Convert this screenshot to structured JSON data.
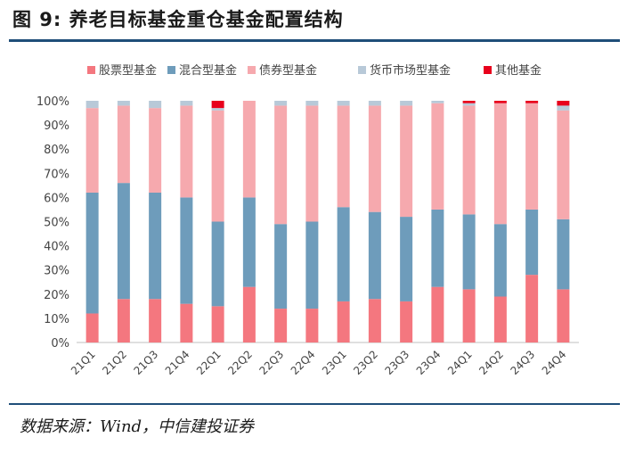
{
  "header": {
    "title": "图 9: 养老目标基金重仓基金配置结构"
  },
  "footer": {
    "source": "数据来源：Wind，中信建投证券"
  },
  "chart_data": {
    "type": "bar",
    "stacked": true,
    "categories": [
      "21Q1",
      "21Q2",
      "21Q3",
      "21Q4",
      "22Q1",
      "22Q2",
      "22Q3",
      "22Q4",
      "23Q1",
      "23Q2",
      "23Q3",
      "23Q4",
      "24Q1",
      "24Q2",
      "24Q3",
      "24Q4"
    ],
    "series": [
      {
        "name": "股票型基金",
        "color": "#f4777f",
        "values": [
          12,
          18,
          18,
          16,
          15,
          23,
          14,
          14,
          17,
          18,
          17,
          23,
          22,
          19,
          28,
          22
        ]
      },
      {
        "name": "混合型基金",
        "color": "#6e9cbb",
        "values": [
          50,
          48,
          44,
          44,
          35,
          37,
          35,
          36,
          39,
          36,
          35,
          32,
          31,
          30,
          27,
          29
        ]
      },
      {
        "name": "债券型基金",
        "color": "#f6a9ae",
        "values": [
          35,
          32,
          35,
          38,
          46,
          40,
          49,
          48,
          42,
          44,
          46,
          44,
          45,
          50,
          44,
          45
        ]
      },
      {
        "name": "货币市场型基金",
        "color": "#b8c9d8",
        "values": [
          3,
          2,
          3,
          2,
          1,
          0,
          2,
          2,
          2,
          2,
          2,
          1,
          1,
          0,
          0,
          2
        ]
      },
      {
        "name": "其他基金",
        "color": "#e8001c",
        "values": [
          0,
          0,
          0,
          0,
          3,
          0,
          0,
          0,
          0,
          0,
          0,
          0,
          1,
          1,
          1,
          2
        ]
      }
    ],
    "yticks": [
      "0%",
      "10%",
      "20%",
      "30%",
      "40%",
      "50%",
      "60%",
      "70%",
      "80%",
      "90%",
      "100%"
    ],
    "ylim": [
      0,
      100
    ],
    "grid": false,
    "legend": "top"
  }
}
